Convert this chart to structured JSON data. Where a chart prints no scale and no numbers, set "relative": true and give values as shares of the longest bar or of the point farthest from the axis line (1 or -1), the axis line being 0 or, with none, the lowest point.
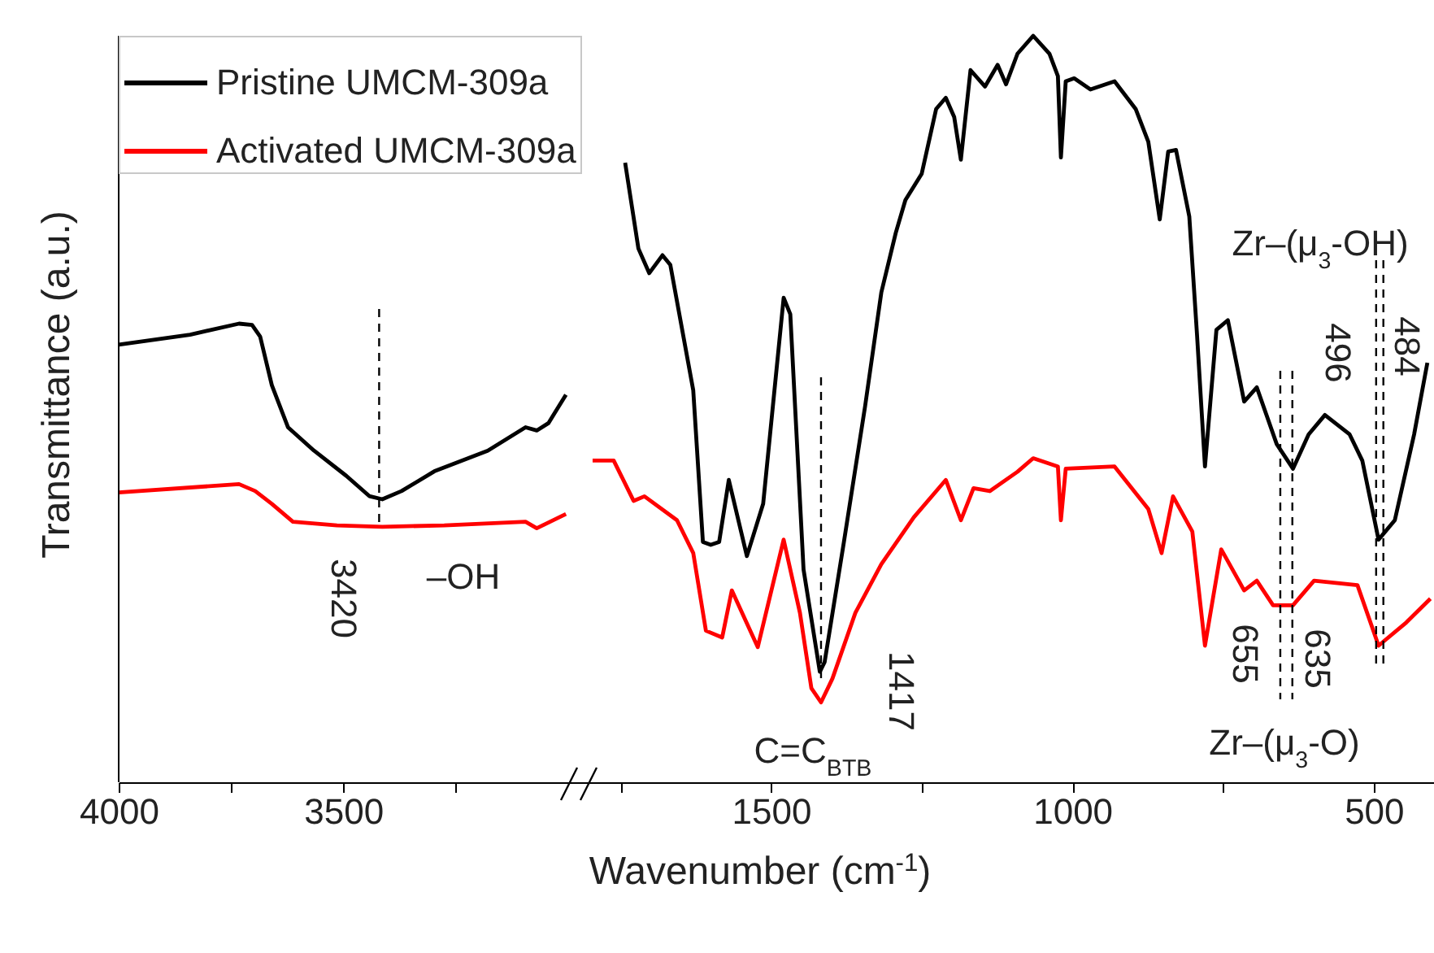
{
  "chart_data": [
    {
      "type": "line",
      "relative": true,
      "ylabel": "Transmittance (a.u.)",
      "legend": "top left",
      "xlim": [
        4000,
        2950
      ],
      "xticks": [
        4000,
        {
          "value": 3750,
          "label": null
        },
        3500,
        {
          "value": 3250,
          "label": null
        }
      ],
      "series": [
        {
          "name": "Pristine UMCM-309a",
          "color": "#000000",
          "x": [
            4000,
            3841,
            3732,
            3703,
            3685,
            3659,
            3623,
            3565,
            3493,
            3442,
            3413,
            3370,
            3297,
            3178,
            3094,
            3069,
            3043,
            3004
          ],
          "values": [
            0.954,
            0.976,
            1,
            0.997,
            0.972,
            0.866,
            0.774,
            0.723,
            0.668,
            0.624,
            0.617,
            0.635,
            0.678,
            0.723,
            0.774,
            0.767,
            0.783,
            0.845
          ]
        },
        {
          "name": "Activated UMCM-309a",
          "color": "#ff0000",
          "x": [
            4000,
            3732,
            3696,
            3659,
            3612,
            3514,
            3413,
            3275,
            3094,
            3069,
            3004
          ],
          "values": [
            0.632,
            0.65,
            0.635,
            0.607,
            0.568,
            0.56,
            0.557,
            0.56,
            0.568,
            0.554,
            0.585
          ]
        }
      ],
      "ref_lines": [
        {
          "axis": "x",
          "value": 3420,
          "label": "3420",
          "line_style": "dashed"
        }
      ],
      "annotations": [
        "–OH"
      ]
    },
    {
      "type": "line",
      "relative": true,
      "xlabel": "Wavenumber (cm$^{-1}$)",
      "xlim": [
        1800,
        400
      ],
      "xticks": [
        {
          "value": 1750,
          "label": null
        },
        1500,
        {
          "value": 1250,
          "label": null
        },
        1000,
        {
          "value": 750,
          "label": null
        },
        500
      ],
      "series": [
        {
          "color": "#000000",
          "x": [
            1742,
            1720,
            1702,
            1680,
            1667,
            1629,
            1613,
            1600,
            1586,
            1570,
            1540,
            1513,
            1479,
            1468,
            1446,
            1419,
            1411,
            1379,
            1344,
            1317,
            1293,
            1277,
            1250,
            1226,
            1210,
            1196,
            1185,
            1169,
            1145,
            1124,
            1110,
            1091,
            1065,
            1038,
            1024,
            1019,
            1011,
            997,
            970,
            930,
            895,
            874,
            855,
            841,
            828,
            806,
            793,
            780,
            761,
            742,
            715,
            694,
            661,
            634,
            608,
            581,
            540,
            519,
            492,
            465,
            433,
            411
          ],
          "values": [
            0.83,
            0.715,
            0.682,
            0.706,
            0.693,
            0.525,
            0.322,
            0.318,
            0.322,
            0.405,
            0.303,
            0.373,
            0.649,
            0.627,
            0.285,
            0.148,
            0.161,
            0.322,
            0.503,
            0.656,
            0.736,
            0.78,
            0.815,
            0.902,
            0.917,
            0.891,
            0.834,
            0.954,
            0.932,
            0.961,
            0.935,
            0.976,
            1,
            0.976,
            0.946,
            0.837,
            0.939,
            0.943,
            0.928,
            0.939,
            0.902,
            0.858,
            0.754,
            0.845,
            0.847,
            0.758,
            0.597,
            0.423,
            0.606,
            0.619,
            0.51,
            0.529,
            0.453,
            0.42,
            0.466,
            0.492,
            0.466,
            0.431,
            0.325,
            0.351,
            0.466,
            0.562
          ]
        },
        {
          "color": "#ff0000",
          "x": [
            1796,
            1761,
            1728,
            1710,
            1656,
            1629,
            1608,
            1581,
            1565,
            1522,
            1479,
            1452,
            1433,
            1417,
            1398,
            1360,
            1317,
            1263,
            1210,
            1185,
            1164,
            1137,
            1091,
            1065,
            1024,
            1019,
            1011,
            930,
            874,
            852,
            833,
            801,
            780,
            753,
            715,
            694,
            667,
            634,
            599,
            527,
            492,
            446,
            406
          ],
          "values": [
            0.431,
            0.431,
            0.377,
            0.383,
            0.351,
            0.307,
            0.203,
            0.194,
            0.257,
            0.181,
            0.325,
            0.227,
            0.126,
            0.107,
            0.139,
            0.227,
            0.292,
            0.355,
            0.405,
            0.351,
            0.394,
            0.39,
            0.416,
            0.434,
            0.423,
            0.351,
            0.42,
            0.423,
            0.366,
            0.307,
            0.383,
            0.336,
            0.183,
            0.312,
            0.257,
            0.27,
            0.237,
            0.237,
            0.27,
            0.264,
            0.183,
            0.214,
            0.246
          ]
        }
      ],
      "ref_lines": [
        {
          "axis": "x",
          "value": 1417,
          "label": "1417",
          "line_style": "dashed"
        },
        {
          "axis": "x",
          "value": 655,
          "label": "655",
          "line_style": "dashed"
        },
        {
          "axis": "x",
          "value": 635,
          "label": "635",
          "line_style": "dashed"
        },
        {
          "axis": "x",
          "value": 496,
          "label": "496",
          "line_style": "dashed"
        },
        {
          "axis": "x",
          "value": 484,
          "label": "484",
          "line_style": "dashed"
        }
      ],
      "annotations": [
        "C=C$_{BTB}$",
        "Zr–(μ$_{3}$-OH)",
        "Zr–(μ$_{3}$-O)"
      ]
    }
  ]
}
